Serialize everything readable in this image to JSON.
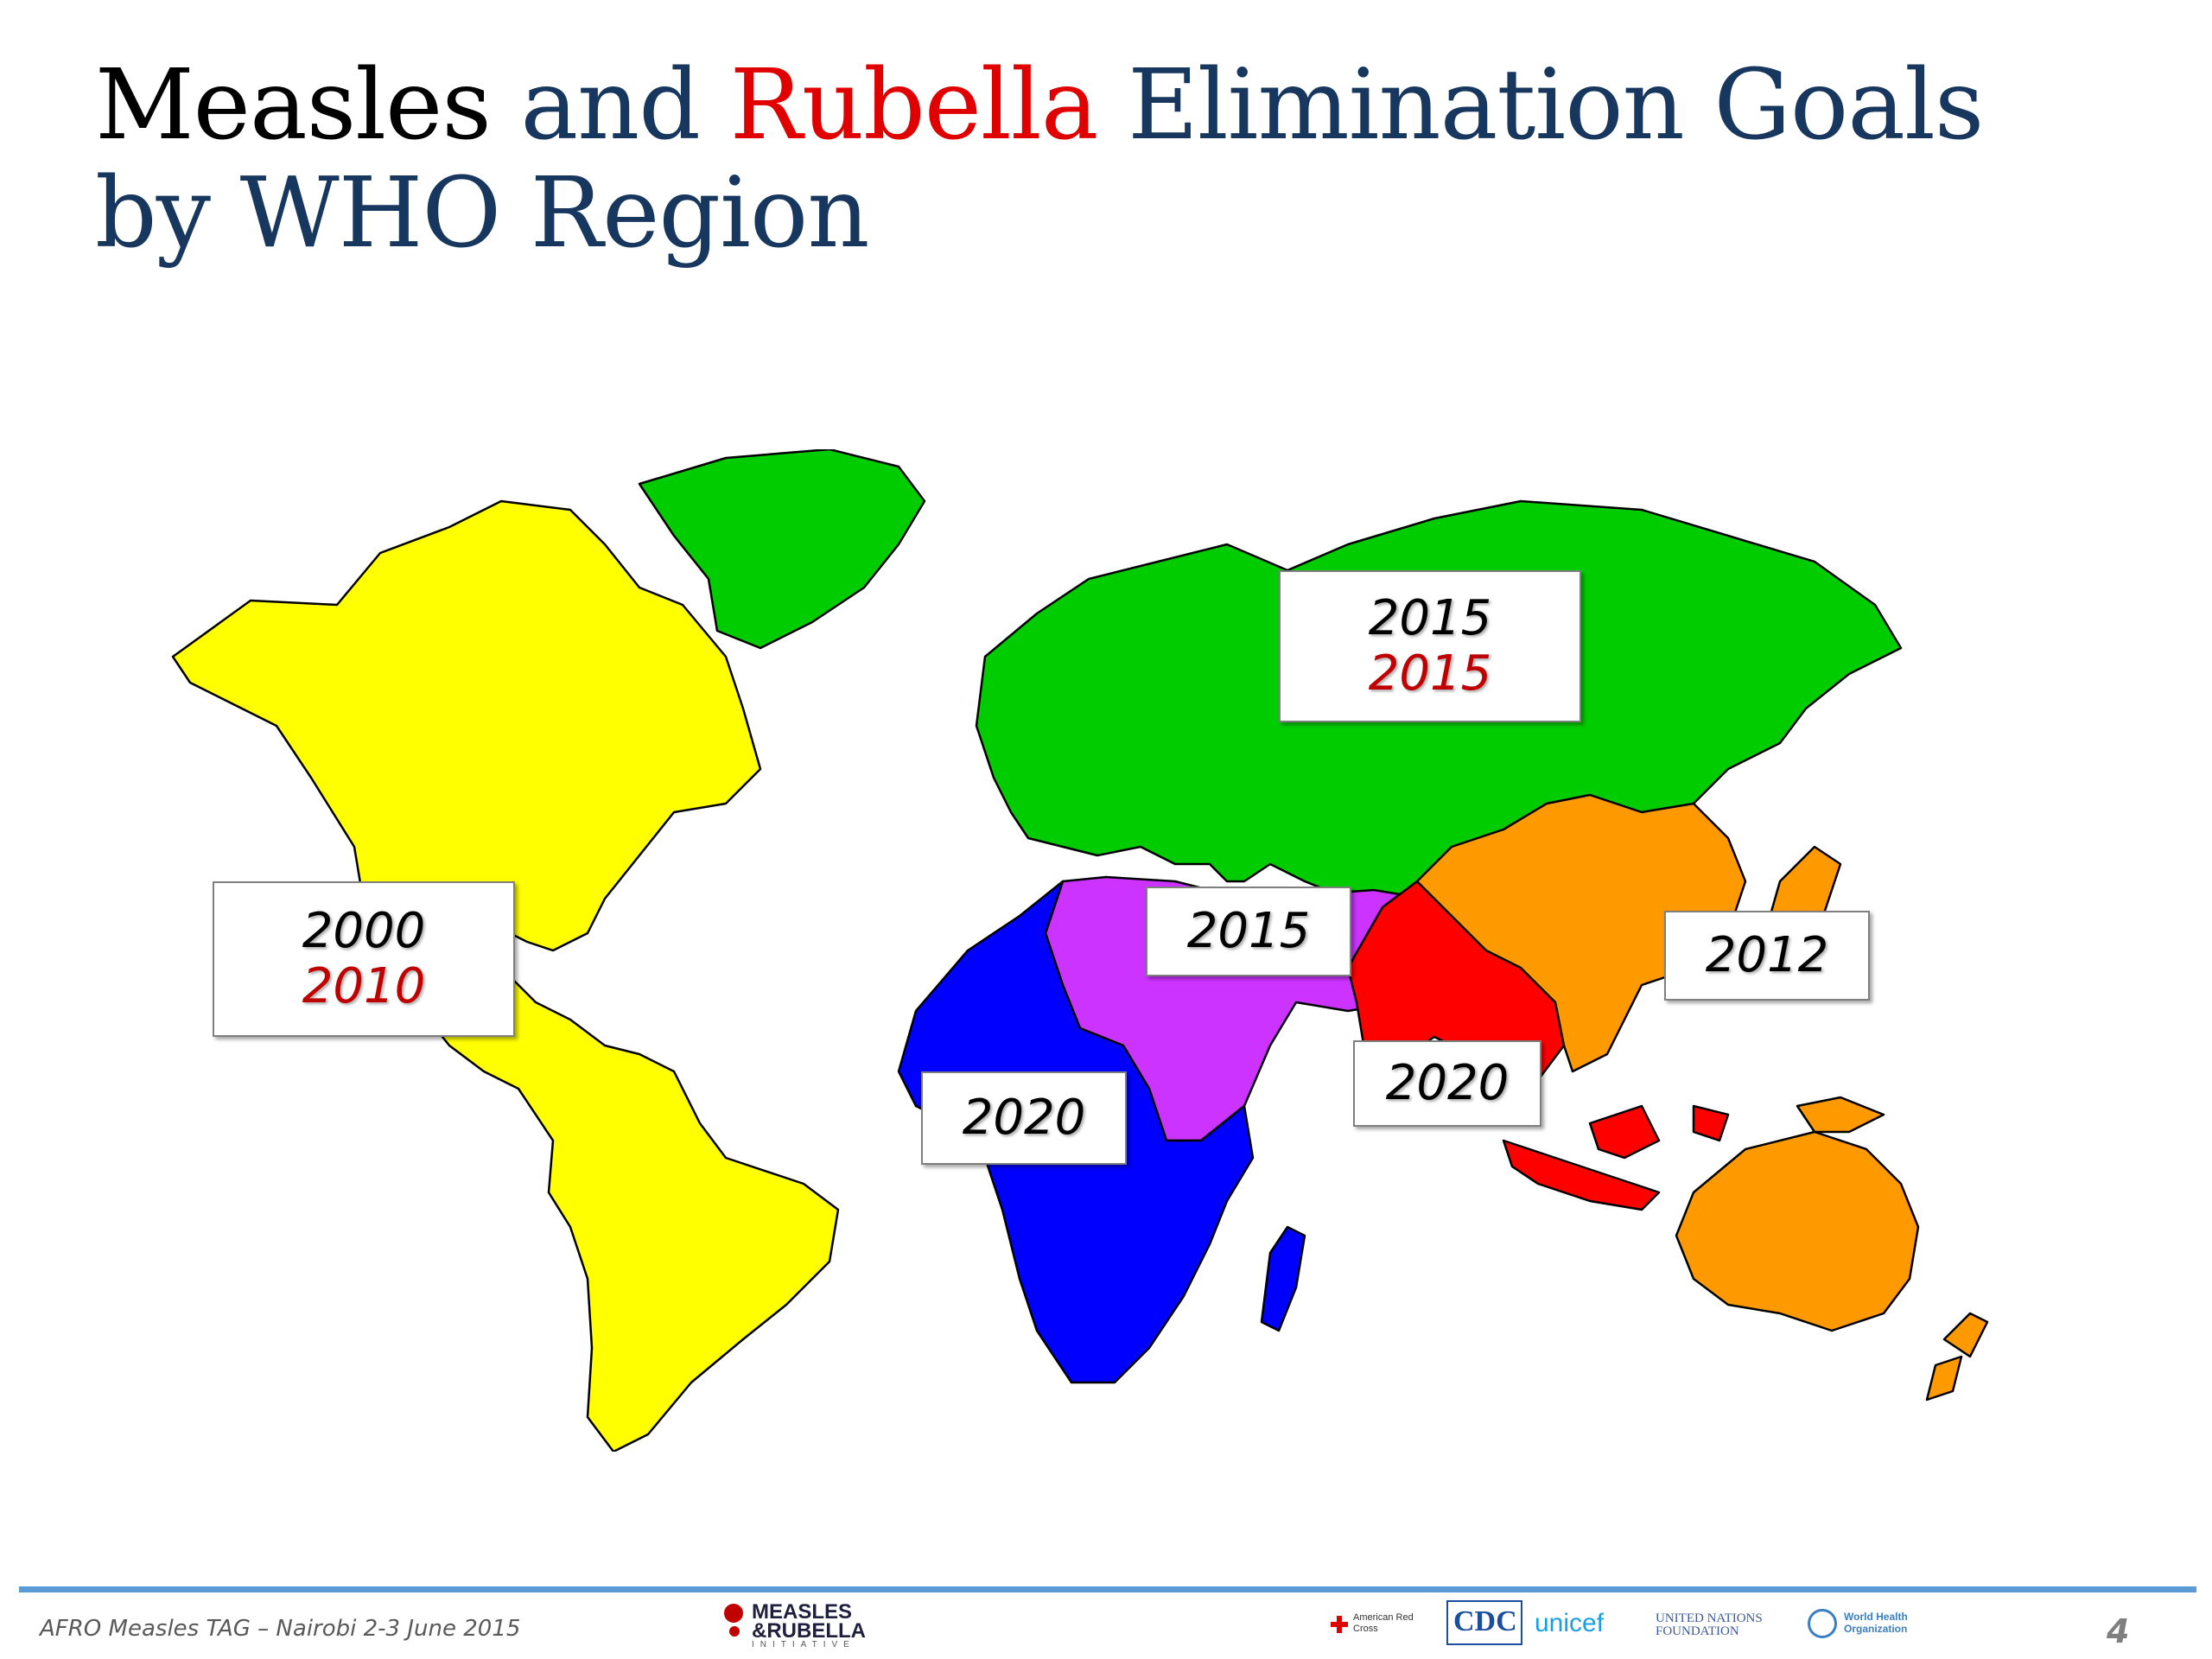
{
  "title": {
    "line1_part1": "Measles",
    "line1_part2": " and ",
    "line1_part3": "Rubella",
    "line1_part4": " Elimination Goals",
    "line2": "by WHO Region"
  },
  "colors": {
    "americas": "#ffff00",
    "europe": "#00cc00",
    "eastern_mediterranean": "#cc33ff",
    "africa": "#0000ff",
    "south_east_asia": "#ff0000",
    "western_pacific": "#ff9900",
    "measles_text": "#000000",
    "rubella_text": "#c00000",
    "title_blue": "#17375e",
    "footer_rule": "#5b9bd5"
  },
  "regions": {
    "americas": {
      "measles": "2000",
      "rubella": "2010"
    },
    "europe": {
      "measles": "2015",
      "rubella": "2015"
    },
    "eastern_mediterranean": {
      "measles": "2015"
    },
    "africa": {
      "measles": "2020"
    },
    "south_east_asia": {
      "measles": "2020"
    },
    "western_pacific": {
      "measles": "2012"
    }
  },
  "footer": {
    "event": "AFRO Measles TAG – Nairobi 2-3 June 2015",
    "page_number": "4"
  },
  "logos": {
    "mri_line1": "MEASLES",
    "mri_line2": "&RUBELLA",
    "mri_line3": "INITIATIVE",
    "red_cross": "American Red Cross",
    "cdc": "CDC",
    "unicef": "unicef",
    "un_foundation": "UNITED NATIONS FOUNDATION",
    "who": "World Health Organization"
  }
}
